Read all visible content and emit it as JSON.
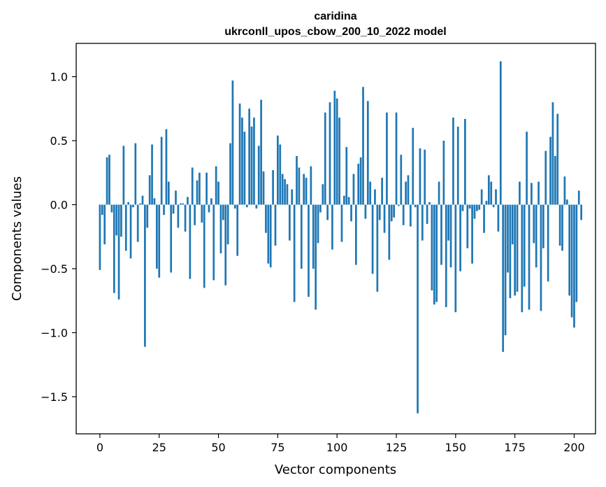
{
  "chart_data": {
    "type": "bar",
    "title_lines": [
      "caridina",
      "ukrconll_upos_cbow_200_10_2022 model"
    ],
    "xlabel": "Vector components",
    "ylabel": "Components values",
    "xlim": [
      -10,
      209
    ],
    "ylim": [
      -1.79,
      1.26
    ],
    "xticks": [
      0,
      25,
      50,
      75,
      100,
      125,
      150,
      175,
      200
    ],
    "xtick_labels": [
      "0",
      "25",
      "50",
      "75",
      "100",
      "125",
      "150",
      "175",
      "200"
    ],
    "yticks": [
      -1.5,
      -1.0,
      -0.5,
      0.0,
      0.5,
      1.0
    ],
    "ytick_labels": [
      "−1.5",
      "−1.0",
      "−0.5",
      "0.0",
      "0.5",
      "1.0"
    ],
    "grid": false,
    "bar_color": "#1f77b4",
    "values": [
      -0.51,
      -0.08,
      -0.31,
      0.37,
      0.39,
      -0.06,
      -0.69,
      -0.24,
      -0.74,
      -0.25,
      0.46,
      -0.36,
      0.02,
      -0.42,
      -0.02,
      0.48,
      -0.29,
      0.01,
      0.07,
      -1.11,
      -0.18,
      0.23,
      0.47,
      0.05,
      -0.5,
      -0.57,
      0.53,
      -0.08,
      0.59,
      0.18,
      -0.53,
      -0.07,
      0.11,
      -0.18,
      0.01,
      0.01,
      -0.21,
      0.06,
      -0.58,
      0.29,
      -0.16,
      0.19,
      0.25,
      -0.14,
      -0.65,
      0.25,
      -0.06,
      0.05,
      -0.59,
      0.3,
      0.18,
      -0.38,
      -0.12,
      -0.63,
      -0.31,
      0.48,
      0.97,
      -0.03,
      -0.4,
      0.79,
      0.68,
      0.57,
      -0.02,
      0.75,
      0.61,
      0.68,
      -0.03,
      0.46,
      0.82,
      0.26,
      -0.22,
      -0.46,
      -0.49,
      0.27,
      -0.32,
      0.54,
      0.47,
      0.24,
      0.2,
      0.16,
      -0.28,
      0.12,
      -0.76,
      0.38,
      0.29,
      -0.5,
      0.24,
      0.21,
      -0.72,
      0.3,
      -0.5,
      -0.82,
      -0.3,
      -0.06,
      0.16,
      0.72,
      -0.12,
      0.8,
      -0.35,
      0.89,
      0.83,
      0.68,
      -0.29,
      0.07,
      0.45,
      0.06,
      -0.13,
      0.24,
      -0.47,
      0.32,
      0.37,
      0.92,
      -0.11,
      0.81,
      0.18,
      -0.54,
      0.12,
      -0.68,
      -0.12,
      0.21,
      -0.22,
      0.72,
      -0.43,
      -0.13,
      -0.1,
      0.72,
      -0.01,
      0.39,
      -0.16,
      0.18,
      0.23,
      -0.17,
      0.6,
      -0.02,
      -1.63,
      0.44,
      -0.28,
      0.43,
      -0.15,
      0.02,
      -0.67,
      -0.78,
      -0.76,
      0.18,
      -0.47,
      0.5,
      -0.8,
      -0.28,
      -0.49,
      0.68,
      -0.84,
      0.61,
      -0.52,
      -0.05,
      0.67,
      -0.34,
      -0.03,
      -0.46,
      -0.11,
      -0.05,
      -0.04,
      0.12,
      -0.22,
      0.03,
      0.23,
      0.18,
      -0.02,
      0.12,
      -0.21,
      1.12,
      -1.15,
      -1.02,
      -0.53,
      -0.73,
      -0.31,
      -0.71,
      -0.68,
      0.18,
      -0.84,
      -0.64,
      0.57,
      -0.82,
      0.17,
      -0.3,
      -0.49,
      0.18,
      -0.83,
      -0.34,
      0.42,
      -0.6,
      0.53,
      0.8,
      0.38,
      0.71,
      -0.32,
      -0.36,
      0.22,
      0.04,
      -0.71,
      -0.88,
      -0.96,
      -0.76,
      0.11,
      -0.12
    ]
  }
}
